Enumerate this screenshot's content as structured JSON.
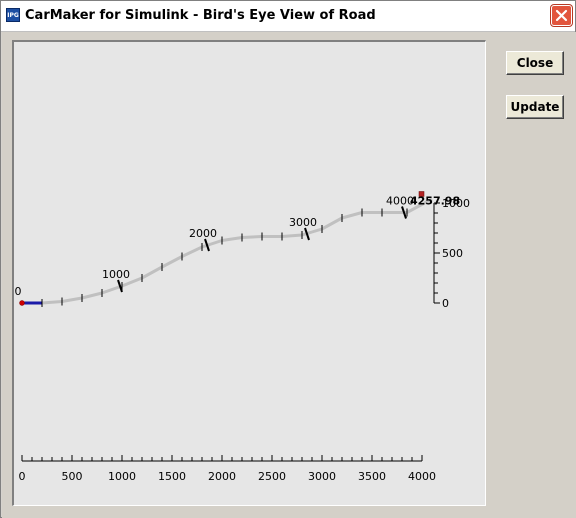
{
  "window": {
    "title": "CarMaker for Simulink - Bird's Eye View of Road",
    "icon": "ipg-app-icon",
    "close_icon": "close-icon"
  },
  "buttons": {
    "close_label": "Close",
    "update_label": "Update"
  },
  "chart_data": {
    "type": "line",
    "title": "",
    "xlabel": "",
    "ylabel": "",
    "x_axis": {
      "range": [
        0,
        4000
      ],
      "major_ticks": [
        0,
        500,
        1000,
        1500,
        2000,
        2500,
        3000,
        3500,
        4000
      ],
      "tick_labels": [
        "0",
        "500",
        "1000",
        "1500",
        "2000",
        "2500",
        "3000",
        "3500",
        "4000"
      ]
    },
    "y_axis": {
      "range": [
        0,
        1000
      ],
      "major_ticks": [
        0,
        500,
        1000
      ],
      "tick_labels": [
        "0",
        "500",
        "1000"
      ]
    },
    "road": {
      "x": [
        0,
        200,
        400,
        600,
        800,
        1000,
        1200,
        1400,
        1600,
        1800,
        2000,
        2200,
        2400,
        2600,
        2800,
        3000,
        3200,
        3400,
        3600,
        3850,
        4100
      ],
      "y": [
        0,
        0,
        15,
        50,
        100,
        170,
        250,
        360,
        465,
        560,
        625,
        655,
        665,
        665,
        680,
        740,
        850,
        905,
        905,
        905,
        1040
      ]
    },
    "distance_markers": [
      {
        "label": "0",
        "x": 0,
        "y": 0
      },
      {
        "label": "1000",
        "x": 980,
        "y": 170
      },
      {
        "label": "2000",
        "x": 1850,
        "y": 580
      },
      {
        "label": "3000",
        "x": 2850,
        "y": 690
      },
      {
        "label": "4000",
        "x": 3820,
        "y": 905
      }
    ],
    "end_label": "4257.98",
    "start_segment_color": "#1a1aa8",
    "road_color": "#c0c0c0",
    "start_marker_color": "#cc0000",
    "end_marker_color": "#b22222"
  }
}
